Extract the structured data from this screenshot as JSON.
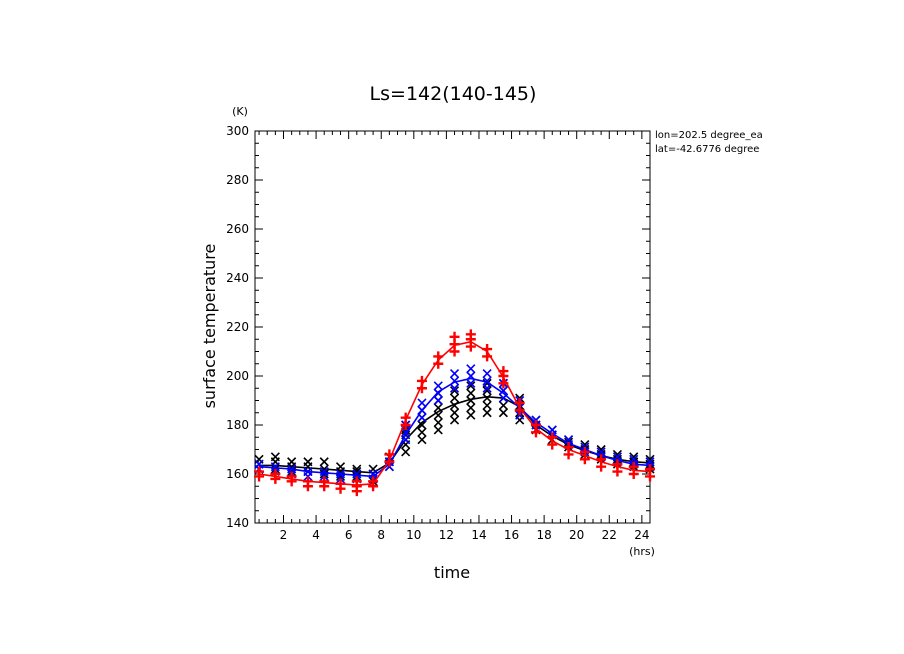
{
  "chart_data": {
    "type": "scatter",
    "title": "Ls=142(140-145)",
    "xlabel": "time",
    "ylabel": "surface temperature",
    "x_unit": "(hrs)",
    "y_unit": "(K)",
    "xlim": [
      0.25,
      24.5
    ],
    "ylim": [
      140,
      300
    ],
    "xticks": [
      2,
      4,
      6,
      8,
      10,
      12,
      14,
      16,
      18,
      20,
      22,
      24
    ],
    "yticks": [
      140,
      160,
      180,
      200,
      220,
      240,
      260,
      280,
      300
    ],
    "annotations": [
      "lon=202.5 degree_ea",
      "lat=-42.6776 degree"
    ],
    "grid": false,
    "legend": "none",
    "x": [
      0.5,
      1.5,
      2.5,
      3.5,
      4.5,
      5.5,
      6.5,
      7.5,
      8.5,
      9.5,
      10.5,
      11.5,
      12.5,
      13.5,
      14.5,
      15.5,
      16.5,
      17.5,
      18.5,
      19.5,
      20.5,
      21.5,
      22.5,
      23.5,
      24.5
    ],
    "series": [
      {
        "color": "#000000",
        "marker": "x",
        "line": [
          163.5,
          163.5,
          163.0,
          162.5,
          162.0,
          161.5,
          161.0,
          160.5,
          164.5,
          174.0,
          181.0,
          185.5,
          188.5,
          190.5,
          191.5,
          191.0,
          187.5,
          180.0,
          175.5,
          172.0,
          169.5,
          167.5,
          166.0,
          165.0,
          164.5
        ],
        "points": [
          [
            0.5,
            [
              162,
              164,
              166
            ]
          ],
          [
            1.5,
            [
              162,
              165,
              167
            ]
          ],
          [
            2.5,
            [
              161,
              163,
              165
            ]
          ],
          [
            3.5,
            [
              161,
              163,
              165
            ]
          ],
          [
            4.5,
            [
              160,
              162,
              165
            ]
          ],
          [
            5.5,
            [
              159,
              161,
              163
            ]
          ],
          [
            6.5,
            [
              159,
              161,
              162
            ]
          ],
          [
            7.5,
            [
              157,
              160,
              162
            ]
          ],
          [
            8.5,
            [
              163,
              165,
              167
            ]
          ],
          [
            9.5,
            [
              169,
              172,
              174,
              176,
              178,
              180
            ]
          ],
          [
            10.5,
            [
              174,
              177,
              180,
              183,
              186
            ]
          ],
          [
            11.5,
            [
              178,
              181,
              184,
              187,
              190,
              193
            ]
          ],
          [
            12.5,
            [
              182,
              185,
              188,
              191,
              194
            ]
          ],
          [
            13.5,
            [
              184,
              187,
              190,
              193,
              196
            ]
          ],
          [
            14.5,
            [
              185,
              188,
              191,
              194,
              197
            ]
          ],
          [
            15.5,
            [
              185,
              188,
              191,
              194,
              197
            ]
          ],
          [
            16.5,
            [
              182,
              185,
              188,
              191
            ]
          ],
          [
            17.5,
            [
              178,
              180,
              182
            ]
          ],
          [
            18.5,
            [
              174,
              176,
              178
            ]
          ],
          [
            19.5,
            [
              171,
              173,
              174
            ]
          ],
          [
            20.5,
            [
              168,
              170,
              172
            ]
          ],
          [
            21.5,
            [
              166,
              168,
              170
            ]
          ],
          [
            22.5,
            [
              164,
              166,
              168
            ]
          ],
          [
            23.5,
            [
              163,
              165,
              167
            ]
          ],
          [
            24.5,
            [
              162,
              164,
              166
            ]
          ]
        ]
      },
      {
        "color": "#0000ff",
        "marker": "x",
        "line": [
          163.0,
          162.5,
          162.0,
          161.0,
          160.5,
          160.0,
          159.5,
          159.0,
          164.0,
          176.0,
          186.0,
          193.5,
          197.5,
          199.0,
          197.5,
          193.0,
          187.0,
          181.0,
          176.5,
          172.5,
          170.0,
          167.5,
          165.5,
          164.0,
          163.5
        ],
        "points": [
          [
            0.5,
            [
              162,
              164
            ]
          ],
          [
            1.5,
            [
              161,
              163
            ]
          ],
          [
            2.5,
            [
              160,
              162
            ]
          ],
          [
            3.5,
            [
              159,
              161
            ]
          ],
          [
            4.5,
            [
              159,
              161
            ]
          ],
          [
            5.5,
            [
              158,
              160
            ]
          ],
          [
            6.5,
            [
              158,
              160
            ]
          ],
          [
            7.5,
            [
              158,
              160
            ]
          ],
          [
            8.5,
            [
              163,
              165
            ]
          ],
          [
            9.5,
            [
              174,
              177,
              180
            ]
          ],
          [
            10.5,
            [
              183,
              186,
              189
            ]
          ],
          [
            11.5,
            [
              190,
              193,
              196
            ]
          ],
          [
            12.5,
            [
              195,
              198,
              201
            ]
          ],
          [
            13.5,
            [
              197,
              200,
              203
            ]
          ],
          [
            14.5,
            [
              195,
              198,
              201
            ]
          ],
          [
            15.5,
            [
              191,
              194,
              197
            ]
          ],
          [
            16.5,
            [
              184,
              187,
              190
            ]
          ],
          [
            17.5,
            [
              180,
              182
            ]
          ],
          [
            18.5,
            [
              176,
              178
            ]
          ],
          [
            19.5,
            [
              172,
              174
            ]
          ],
          [
            20.5,
            [
              169,
              171
            ]
          ],
          [
            21.5,
            [
              167,
              169
            ]
          ],
          [
            22.5,
            [
              165,
              167
            ]
          ],
          [
            23.5,
            [
              164,
              166
            ]
          ],
          [
            24.5,
            [
              163,
              165
            ]
          ]
        ]
      },
      {
        "color": "#ff0000",
        "marker": "+",
        "line": [
          160.0,
          159.0,
          158.0,
          157.0,
          156.5,
          156.0,
          155.5,
          156.0,
          165.5,
          182.0,
          196.5,
          206.5,
          212.5,
          214.0,
          210.0,
          199.5,
          187.0,
          178.5,
          173.5,
          170.0,
          167.5,
          165.0,
          163.0,
          161.5,
          161.0
        ],
        "points": [
          [
            0.5,
            [
              159,
              161
            ]
          ],
          [
            1.5,
            [
              158,
              160
            ]
          ],
          [
            2.5,
            [
              157,
              159
            ]
          ],
          [
            3.5,
            [
              155,
              157
            ]
          ],
          [
            4.5,
            [
              155,
              157
            ]
          ],
          [
            5.5,
            [
              154,
              156
            ]
          ],
          [
            6.5,
            [
              153,
              155,
              157
            ]
          ],
          [
            7.5,
            [
              155,
              157
            ]
          ],
          [
            8.5,
            [
              165,
              168
            ]
          ],
          [
            9.5,
            [
              180,
              183
            ]
          ],
          [
            10.5,
            [
              195,
              198
            ]
          ],
          [
            11.5,
            [
              205,
              208
            ]
          ],
          [
            12.5,
            [
              210,
              213,
              216
            ]
          ],
          [
            13.5,
            [
              212,
              215,
              217
            ]
          ],
          [
            14.5,
            [
              208,
              211
            ]
          ],
          [
            15.5,
            [
              197,
              200,
              202
            ]
          ],
          [
            16.5,
            [
              186,
              189
            ]
          ],
          [
            17.5,
            [
              177,
              180
            ]
          ],
          [
            18.5,
            [
              172,
              175
            ]
          ],
          [
            19.5,
            [
              168,
              171
            ]
          ],
          [
            20.5,
            [
              166,
              169
            ]
          ],
          [
            21.5,
            [
              163,
              166
            ]
          ],
          [
            22.5,
            [
              161,
              164
            ]
          ],
          [
            23.5,
            [
              160,
              163
            ]
          ],
          [
            24.5,
            [
              159,
              162
            ]
          ]
        ]
      }
    ]
  }
}
